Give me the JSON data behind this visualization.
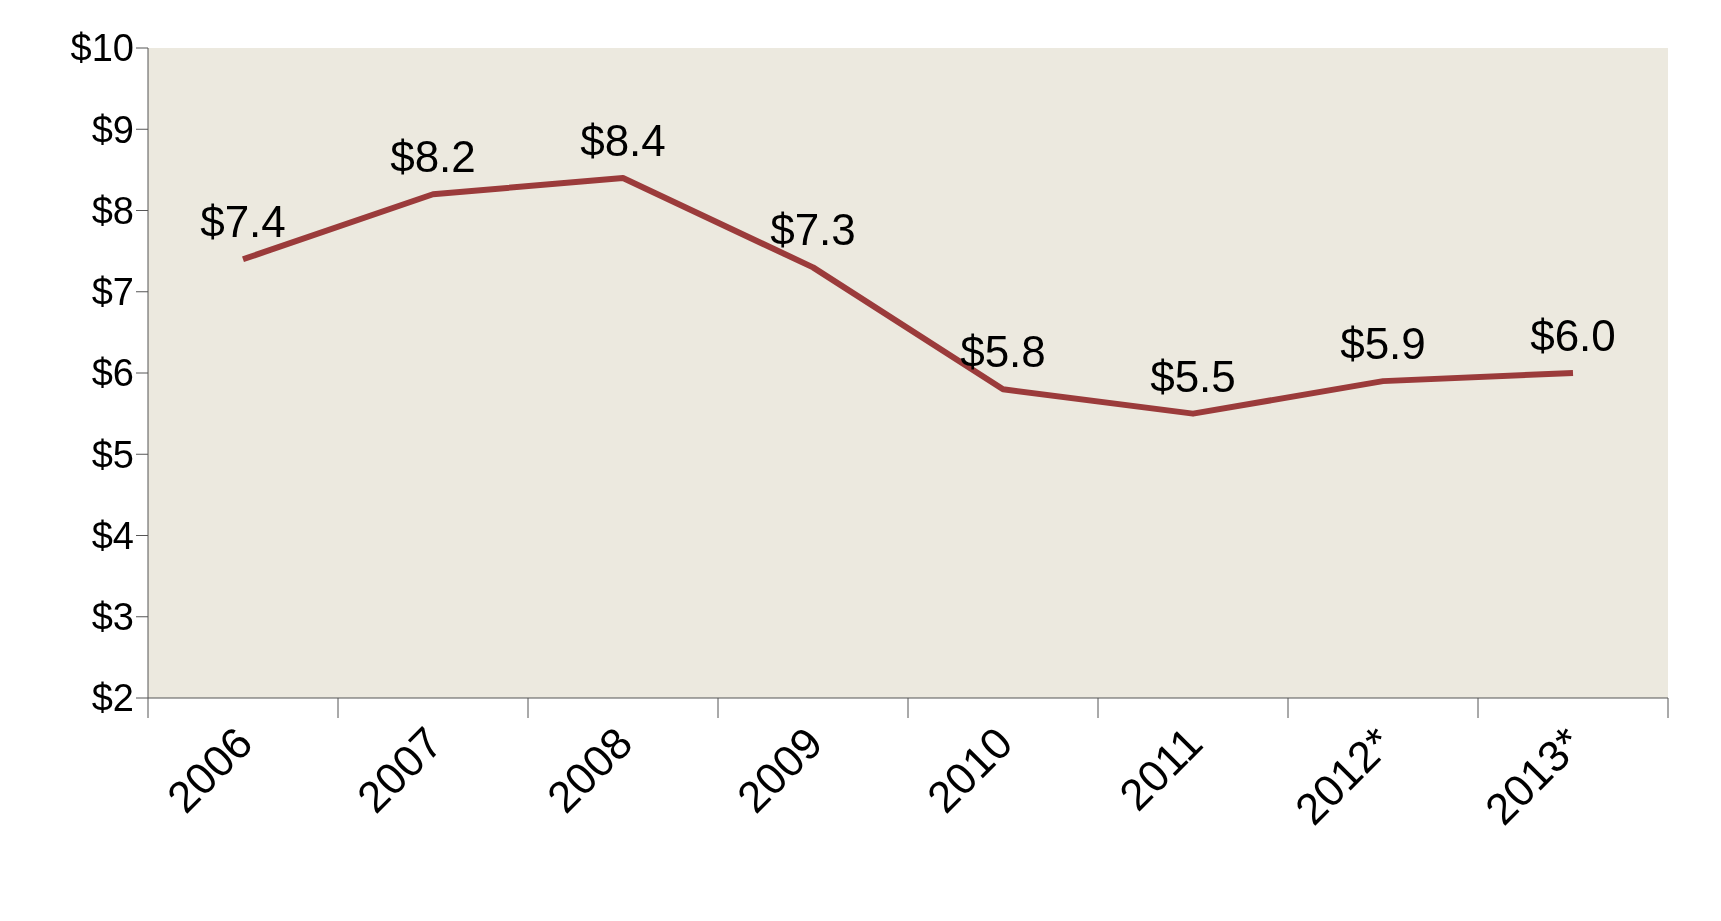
{
  "chart_data": {
    "type": "line",
    "categories": [
      "2006",
      "2007",
      "2008",
      "2009",
      "2010",
      "2011",
      "2012*",
      "2013*"
    ],
    "series": [
      {
        "color": "#9b3b3b",
        "values": [
          7.4,
          8.2,
          8.4,
          7.3,
          5.8,
          5.5,
          5.9,
          6.0
        ],
        "value_labels": [
          "$7.4",
          "$8.2",
          "$8.4",
          "$7.3",
          "$5.8",
          "$5.5",
          "$5.9",
          "$6.0"
        ]
      }
    ],
    "ylim": [
      2,
      10
    ],
    "yticks": [
      {
        "value": 2,
        "label": "$2"
      },
      {
        "value": 3,
        "label": "$3"
      },
      {
        "value": 4,
        "label": "$4"
      },
      {
        "value": 5,
        "label": "$5"
      },
      {
        "value": 6,
        "label": "$6"
      },
      {
        "value": 7,
        "label": "$7"
      },
      {
        "value": 8,
        "label": "$8"
      },
      {
        "value": 9,
        "label": "$9"
      },
      {
        "value": 10,
        "label": "$10"
      }
    ],
    "grid": false,
    "legend": false,
    "marker": "none",
    "line_style": "solid"
  }
}
